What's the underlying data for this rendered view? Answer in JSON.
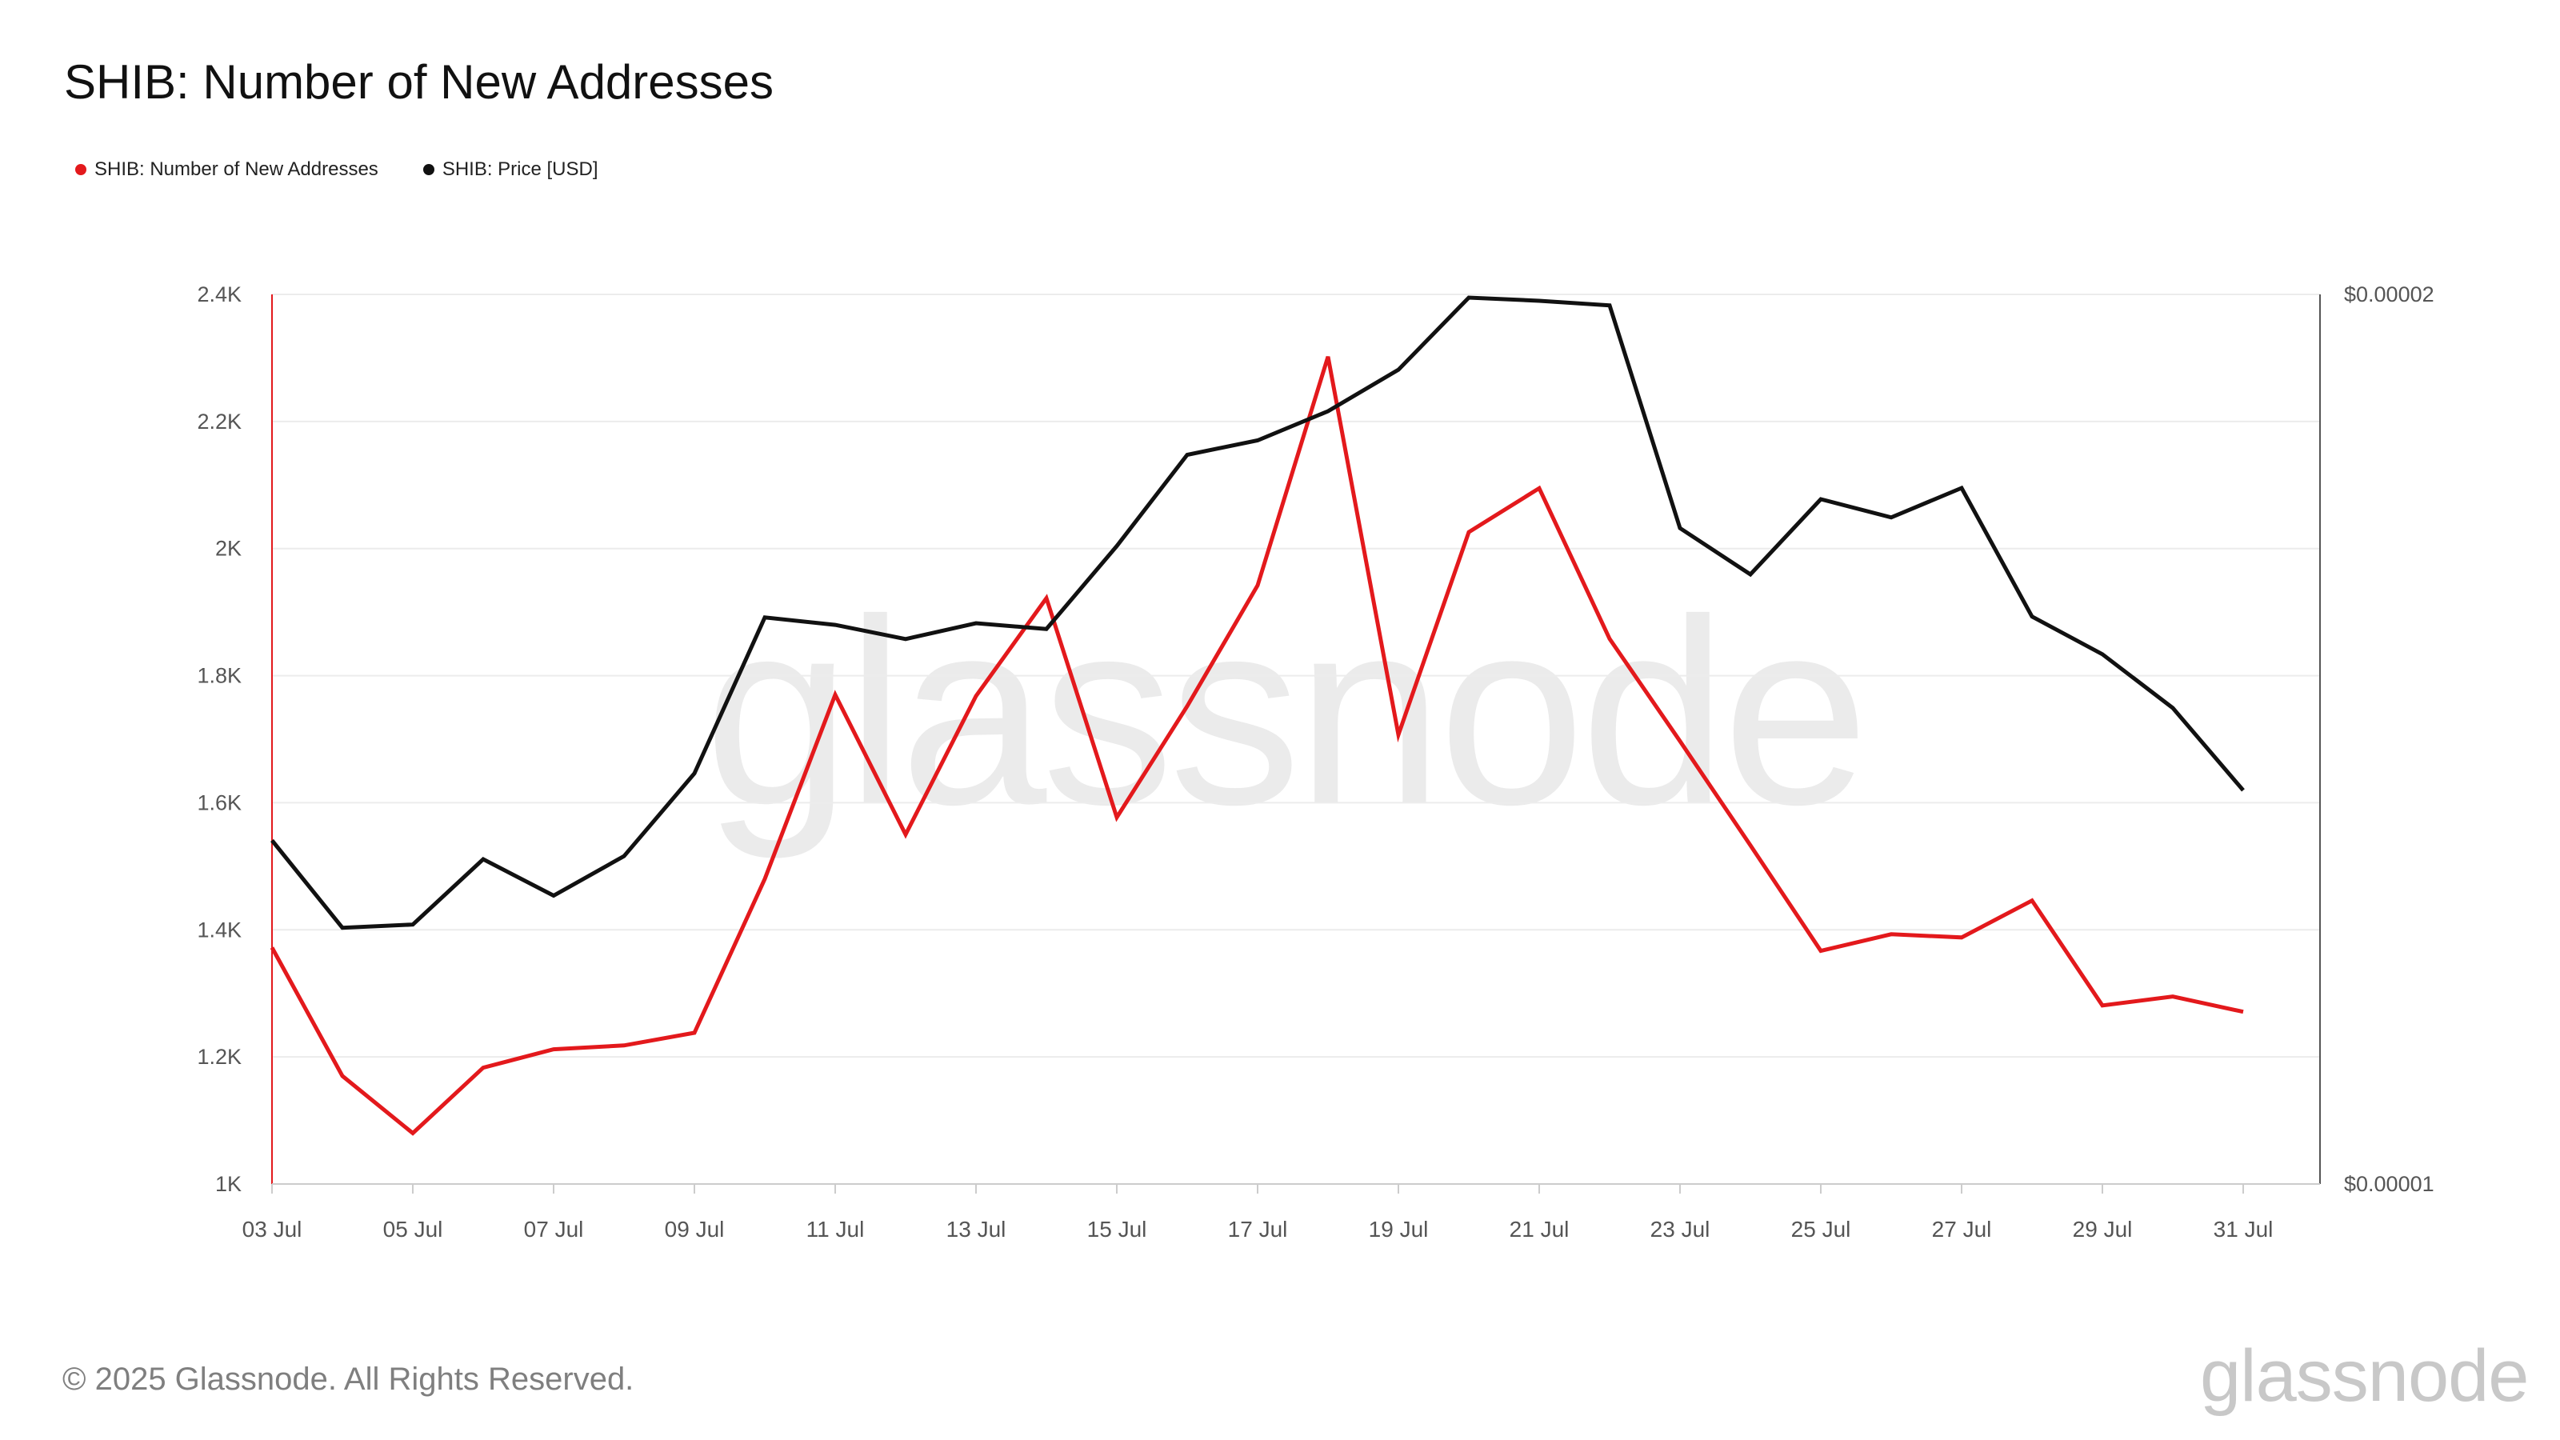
{
  "title": "SHIB: Number of New Addresses",
  "legend": [
    {
      "label": "SHIB: Number of New Addresses",
      "color": "#e3191c"
    },
    {
      "label": "SHIB: Price [USD]",
      "color": "#111111"
    }
  ],
  "footer": "© 2025 Glassnode. All Rights Reserved.",
  "brand": "glassnode",
  "watermark": "glassnode",
  "chart_data": {
    "type": "line",
    "title": "SHIB: Number of New Addresses",
    "x": [
      "03 Jul",
      "04 Jul",
      "05 Jul",
      "06 Jul",
      "07 Jul",
      "08 Jul",
      "09 Jul",
      "10 Jul",
      "11 Jul",
      "12 Jul",
      "13 Jul",
      "14 Jul",
      "15 Jul",
      "16 Jul",
      "17 Jul",
      "18 Jul",
      "19 Jul",
      "20 Jul",
      "21 Jul",
      "22 Jul",
      "23 Jul",
      "24 Jul",
      "25 Jul",
      "26 Jul",
      "27 Jul",
      "28 Jul",
      "29 Jul",
      "30 Jul",
      "31 Jul"
    ],
    "x_tick_labels": [
      "03 Jul",
      "05 Jul",
      "07 Jul",
      "09 Jul",
      "11 Jul",
      "13 Jul",
      "15 Jul",
      "17 Jul",
      "19 Jul",
      "21 Jul",
      "23 Jul",
      "25 Jul",
      "27 Jul",
      "29 Jul",
      "31 Jul"
    ],
    "y_left": {
      "ylim": [
        1000,
        2400
      ],
      "ticks": [
        1000,
        1200,
        1400,
        1600,
        1800,
        2000,
        2200,
        2400
      ],
      "tick_labels": [
        "1K",
        "1.2K",
        "1.4K",
        "1.6K",
        "1.8K",
        "2K",
        "2.2K",
        "2.4K"
      ],
      "color": "#e3191c"
    },
    "y_right": {
      "scale": "log",
      "ylim": [
        1e-05,
        2e-05
      ],
      "ticks": [
        1e-05,
        2e-05
      ],
      "tick_labels": [
        "$0.00001",
        "$0.00002"
      ],
      "color": "#111111"
    },
    "grid": "horizontal",
    "legend_position": "top-left",
    "series": [
      {
        "name": "SHIB: Number of New Addresses",
        "axis": "left",
        "color": "#e3191c",
        "values": [
          1372,
          1170,
          1080,
          1183,
          1212,
          1218,
          1238,
          1480,
          1770,
          1550,
          1768,
          1922,
          1577,
          1752,
          1942,
          2302,
          1707,
          2026,
          2095,
          1858,
          1697,
          1533,
          1367,
          1393,
          1388,
          1446,
          1281,
          1295,
          1271
        ]
      },
      {
        "name": "SHIB: Price [USD]",
        "axis": "right",
        "color": "#111111",
        "values": [
          1.307e-05,
          1.221e-05,
          1.224e-05,
          1.288e-05,
          1.252e-05,
          1.291e-05,
          1.377e-05,
          1.555e-05,
          1.546e-05,
          1.529e-05,
          1.548e-05,
          1.541e-05,
          1.644e-05,
          1.765e-05,
          1.785e-05,
          1.826e-05,
          1.886e-05,
          1.995e-05,
          1.99e-05,
          1.983e-05,
          1.667e-05,
          1.608e-05,
          1.705e-05,
          1.681e-05,
          1.72e-05,
          1.556e-05,
          1.511e-05,
          1.449e-05,
          1.359e-05
        ]
      }
    ]
  }
}
